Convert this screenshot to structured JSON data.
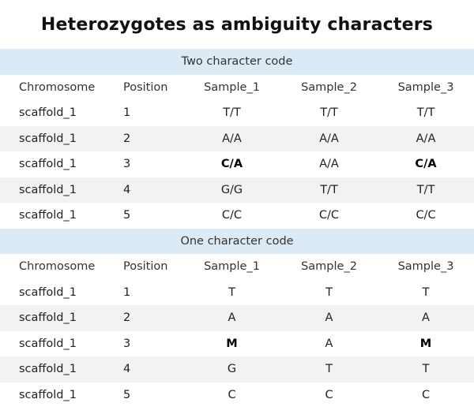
{
  "title": "Heterozygotes as ambiguity characters",
  "tables": [
    {
      "section_label": "Two character code",
      "headers": [
        "Chromosome",
        "Position",
        "Sample_1",
        "Sample_2",
        "Sample_3"
      ],
      "rows": [
        {
          "chromosome": "scaffold_1",
          "position": "1",
          "sample_1": "T/T",
          "sample_2": "T/T",
          "sample_3": "T/T"
        },
        {
          "chromosome": "scaffold_1",
          "position": "2",
          "sample_1": "A/A",
          "sample_2": "A/A",
          "sample_3": "A/A"
        },
        {
          "chromosome": "scaffold_1",
          "position": "3",
          "sample_1": "C/A",
          "sample_2": "A/A",
          "sample_3": "C/A"
        },
        {
          "chromosome": "scaffold_1",
          "position": "4",
          "sample_1": "G/G",
          "sample_2": "T/T",
          "sample_3": "T/T"
        },
        {
          "chromosome": "scaffold_1",
          "position": "5",
          "sample_1": "C/C",
          "sample_2": "C/C",
          "sample_3": "C/C"
        }
      ]
    },
    {
      "section_label": "One character code",
      "headers": [
        "Chromosome",
        "Position",
        "Sample_1",
        "Sample_2",
        "Sample_3"
      ],
      "rows": [
        {
          "chromosome": "scaffold_1",
          "position": "1",
          "sample_1": "T",
          "sample_2": "T",
          "sample_3": "T"
        },
        {
          "chromosome": "scaffold_1",
          "position": "2",
          "sample_1": "A",
          "sample_2": "A",
          "sample_3": "A"
        },
        {
          "chromosome": "scaffold_1",
          "position": "3",
          "sample_1": "M",
          "sample_2": "A",
          "sample_3": "M"
        },
        {
          "chromosome": "scaffold_1",
          "position": "4",
          "sample_1": "G",
          "sample_2": "T",
          "sample_3": "T"
        },
        {
          "chromosome": "scaffold_1",
          "position": "5",
          "sample_1": "C",
          "sample_2": "C",
          "sample_3": "C"
        }
      ]
    }
  ],
  "colors": {
    "section_background": "#dceaf5",
    "alternate_row_background": "#f2f2f2"
  }
}
